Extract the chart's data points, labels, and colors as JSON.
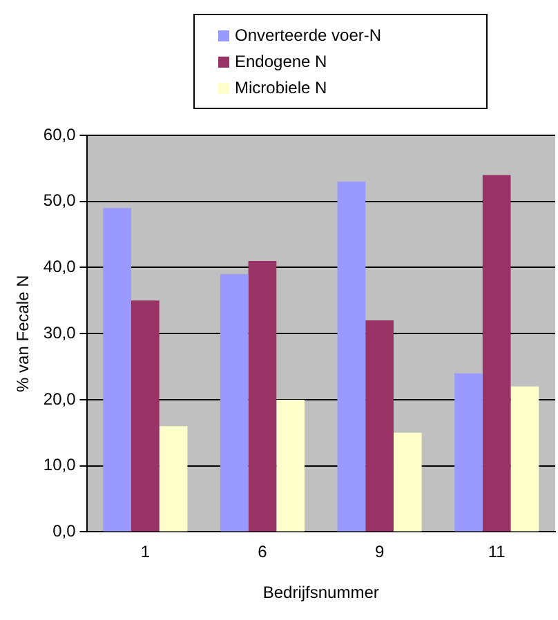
{
  "chart_data": {
    "type": "bar",
    "xlabel": "Bedrijfsnummer",
    "ylabel": "% van Fecale N",
    "categories": [
      "1",
      "6",
      "9",
      "11"
    ],
    "series": [
      {
        "name": "Onverteerde voer-N",
        "color": "#9999ff",
        "values": [
          49,
          39,
          53,
          24
        ]
      },
      {
        "name": "Endogene N",
        "color": "#993366",
        "values": [
          35,
          41,
          32,
          54
        ]
      },
      {
        "name": "Microbiele N",
        "color": "#ffffcc",
        "values": [
          16,
          20,
          15,
          22
        ]
      }
    ],
    "ylim": [
      0,
      60
    ],
    "yticks": [
      {
        "value": 0,
        "label": "0,0"
      },
      {
        "value": 10,
        "label": "10,0"
      },
      {
        "value": 20,
        "label": "20,0"
      },
      {
        "value": 30,
        "label": "30,0"
      },
      {
        "value": 40,
        "label": "40,0"
      },
      {
        "value": 50,
        "label": "50,0"
      },
      {
        "value": 60,
        "label": "60,0"
      }
    ],
    "grid": "y",
    "legend": "top"
  }
}
